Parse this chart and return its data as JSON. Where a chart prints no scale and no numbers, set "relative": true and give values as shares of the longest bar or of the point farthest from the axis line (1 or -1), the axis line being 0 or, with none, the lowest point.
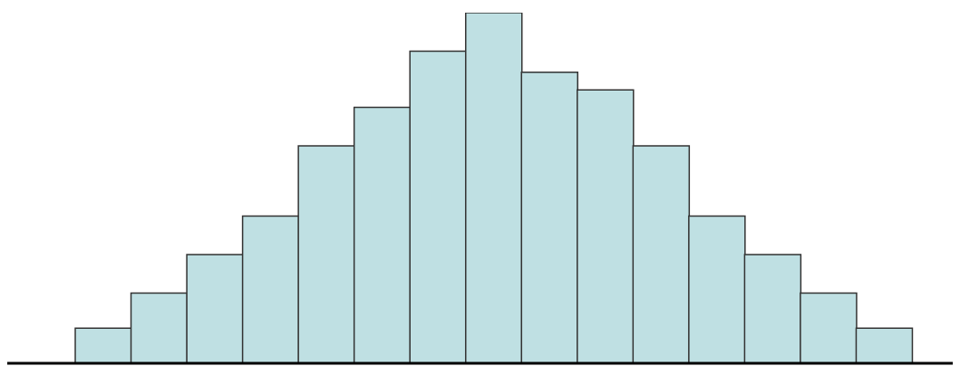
{
  "chart_data": {
    "type": "bar",
    "relative": true,
    "categories": [
      null,
      null,
      null,
      null,
      null,
      null,
      null,
      null,
      null,
      null,
      null,
      null,
      null,
      null,
      null
    ],
    "values": [
      0.1,
      0.2,
      0.31,
      0.42,
      0.62,
      0.73,
      0.89,
      1,
      0.83,
      0.78,
      0.62,
      0.42,
      0.31,
      0.2,
      0.1
    ],
    "color": "#bfe0e3"
  }
}
